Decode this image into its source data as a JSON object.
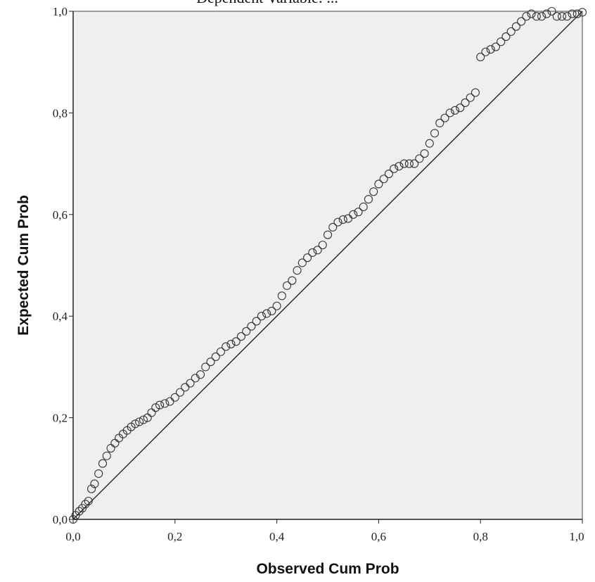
{
  "chart_data": {
    "type": "scatter",
    "title": "Dependent Variable: ...",
    "xlabel": "Observed Cum Prob",
    "ylabel": "Expected Cum Prob",
    "xlim": [
      0,
      1
    ],
    "ylim": [
      0,
      1
    ],
    "xticks": [
      "0,0",
      "0,2",
      "0,4",
      "0,6",
      "0,8",
      "1,0"
    ],
    "yticks": [
      "0,0",
      "0,2",
      "0,4",
      "0,6",
      "0,8",
      "1,0"
    ],
    "grid": false,
    "legend": "none",
    "reference_line": {
      "x": [
        0,
        1
      ],
      "y": [
        0,
        1
      ]
    },
    "series": [
      {
        "x": [
          0.0,
          0.005,
          0.012,
          0.018,
          0.024,
          0.03,
          0.036,
          0.042,
          0.05,
          0.058,
          0.066,
          0.074,
          0.082,
          0.09,
          0.098,
          0.106,
          0.114,
          0.122,
          0.13,
          0.138,
          0.146,
          0.154,
          0.162,
          0.17,
          0.18,
          0.19,
          0.2,
          0.21,
          0.22,
          0.23,
          0.24,
          0.25,
          0.26,
          0.27,
          0.28,
          0.29,
          0.3,
          0.31,
          0.32,
          0.33,
          0.34,
          0.35,
          0.36,
          0.37,
          0.38,
          0.39,
          0.4,
          0.41,
          0.42,
          0.43,
          0.44,
          0.45,
          0.46,
          0.47,
          0.48,
          0.49,
          0.5,
          0.51,
          0.52,
          0.53,
          0.54,
          0.55,
          0.56,
          0.57,
          0.58,
          0.59,
          0.6,
          0.61,
          0.62,
          0.63,
          0.64,
          0.65,
          0.66,
          0.67,
          0.68,
          0.69,
          0.7,
          0.71,
          0.72,
          0.73,
          0.74,
          0.75,
          0.76,
          0.77,
          0.78,
          0.79,
          0.8,
          0.81,
          0.82,
          0.83,
          0.84,
          0.85,
          0.86,
          0.87,
          0.88,
          0.89,
          0.9,
          0.91,
          0.92,
          0.93,
          0.94,
          0.95,
          0.96,
          0.97,
          0.98,
          0.99,
          1.0
        ],
        "y": [
          0.0,
          0.008,
          0.016,
          0.022,
          0.03,
          0.036,
          0.06,
          0.07,
          0.09,
          0.11,
          0.125,
          0.14,
          0.15,
          0.16,
          0.168,
          0.175,
          0.182,
          0.188,
          0.192,
          0.196,
          0.2,
          0.21,
          0.22,
          0.225,
          0.228,
          0.232,
          0.24,
          0.25,
          0.26,
          0.268,
          0.278,
          0.285,
          0.3,
          0.31,
          0.32,
          0.33,
          0.34,
          0.345,
          0.35,
          0.36,
          0.37,
          0.38,
          0.39,
          0.4,
          0.405,
          0.41,
          0.42,
          0.44,
          0.46,
          0.47,
          0.49,
          0.505,
          0.515,
          0.525,
          0.53,
          0.54,
          0.56,
          0.575,
          0.585,
          0.59,
          0.592,
          0.6,
          0.605,
          0.615,
          0.63,
          0.645,
          0.66,
          0.67,
          0.68,
          0.69,
          0.695,
          0.7,
          0.7,
          0.7,
          0.71,
          0.72,
          0.74,
          0.76,
          0.78,
          0.79,
          0.8,
          0.805,
          0.81,
          0.82,
          0.83,
          0.84,
          0.91,
          0.92,
          0.925,
          0.93,
          0.94,
          0.95,
          0.96,
          0.97,
          0.98,
          0.99,
          0.995,
          0.99,
          0.99,
          0.995,
          1.0,
          0.99,
          0.99,
          0.99,
          0.995,
          0.995,
          0.998
        ]
      }
    ]
  }
}
